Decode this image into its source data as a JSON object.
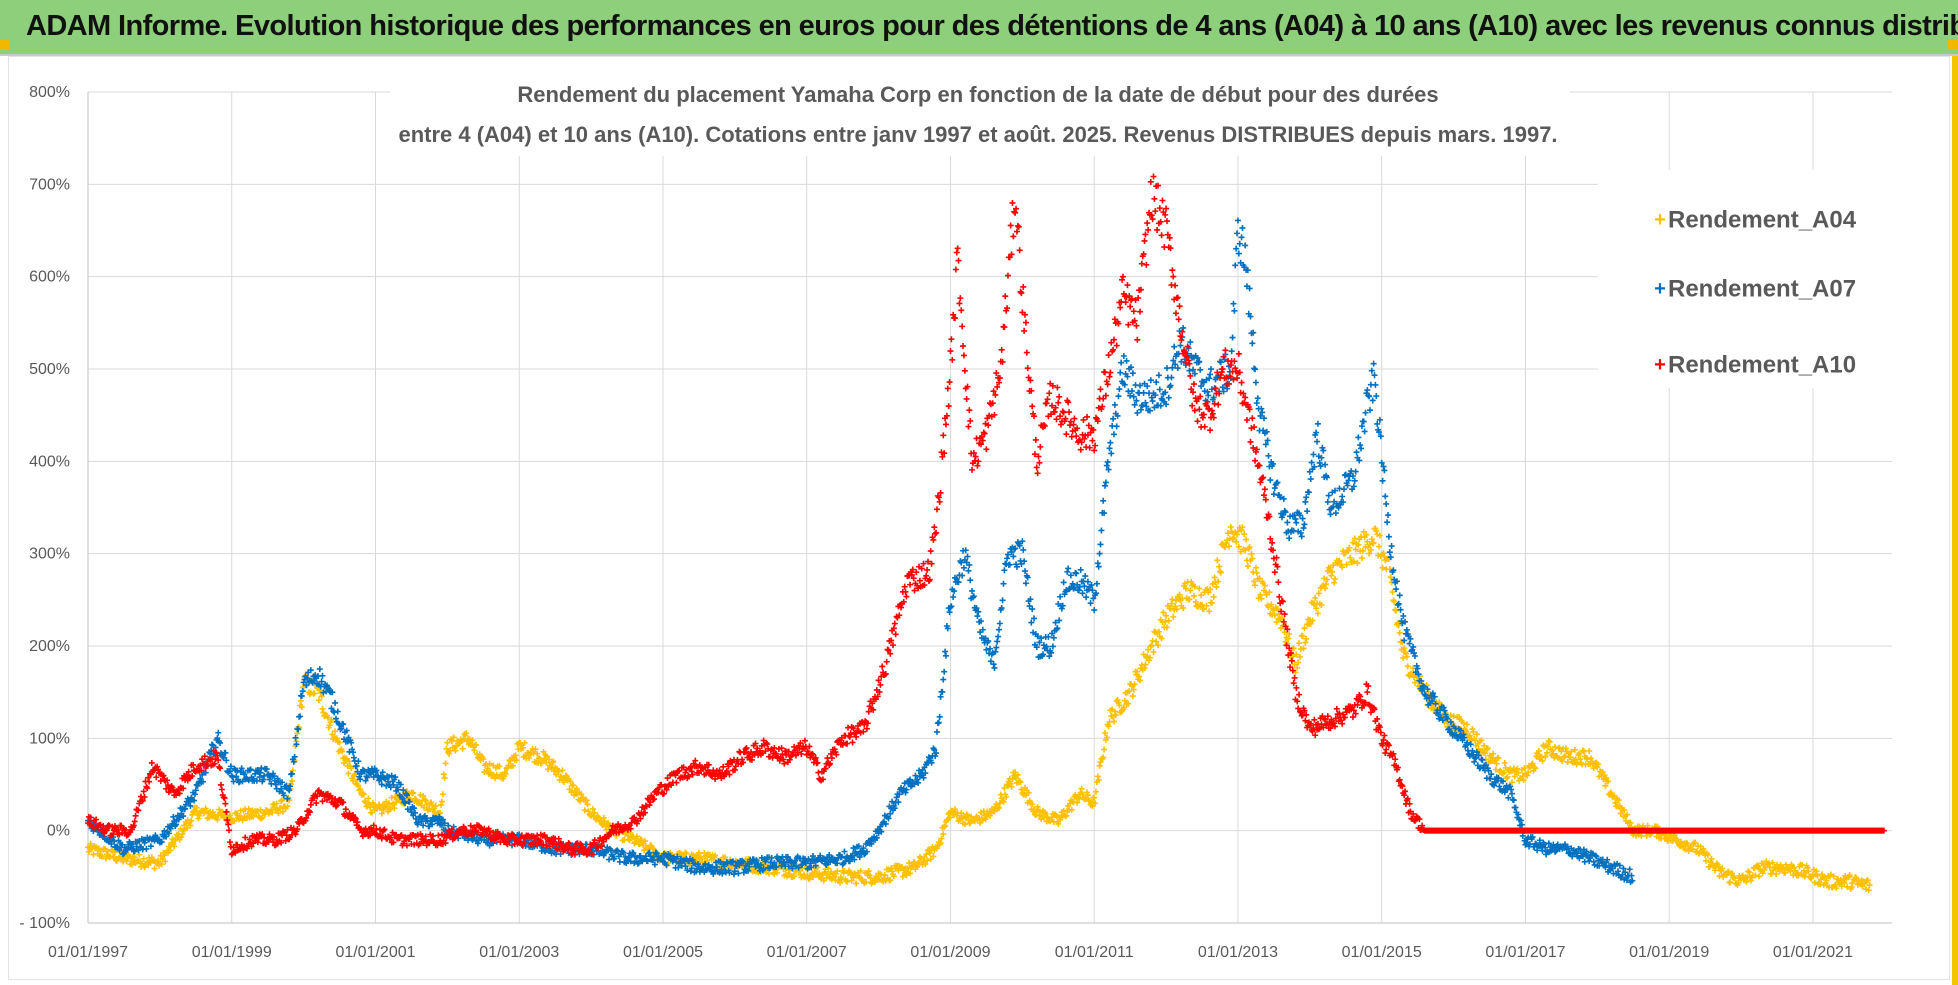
{
  "banner": {
    "text": "ADAM Informe. Evolution historique des performances en euros pour des détentions de 4 ans (A04) à 10 ans (A10) avec les revenus connus distribués"
  },
  "colors": {
    "banner_bg": "#8dcf7a",
    "accent_yellow": "#f2b800",
    "A04": "#ffc000",
    "A07": "#0070c0",
    "A10": "#ff0000",
    "grid": "#d9d9d9",
    "text": "#595959"
  },
  "chart_data": {
    "type": "scatter",
    "title_lines": [
      "Rendement du placement Yamaha Corp en fonction de la date de début pour des durées",
      "entre 4 (A04) et 10 ans (A10). Cotations entre janv 1997 et août. 2025. Revenus DISTRIBUES depuis mars. 1997."
    ],
    "x_tick_labels": [
      "01/01/1997",
      "01/01/1999",
      "01/01/2001",
      "01/01/2003",
      "01/01/2005",
      "01/01/2007",
      "01/01/2009",
      "01/01/2011",
      "01/01/2013",
      "01/01/2015",
      "01/01/2017",
      "01/01/2019",
      "01/01/2021"
    ],
    "y_tick_labels": [
      "- 100%",
      "0%",
      "100%",
      "200%",
      "300%",
      "400%",
      "500%",
      "600%",
      "700%",
      "800%"
    ],
    "ylim": [
      -100,
      800
    ],
    "xlim_years": [
      1997,
      2022.1
    ],
    "marker": "+",
    "grid": true,
    "legend_position": "top-right",
    "series": [
      {
        "name": "Rendement_A04",
        "color": "#ffc000",
        "points": [
          [
            1997.0,
            -20
          ],
          [
            1997.5,
            -30
          ],
          [
            1998.0,
            -35
          ],
          [
            1998.5,
            20
          ],
          [
            1999.0,
            15
          ],
          [
            1999.5,
            20
          ],
          [
            1999.8,
            30
          ],
          [
            2000.0,
            160
          ],
          [
            2000.2,
            150
          ],
          [
            2000.5,
            90
          ],
          [
            2000.8,
            40
          ],
          [
            2001.0,
            20
          ],
          [
            2001.5,
            40
          ],
          [
            2001.9,
            20
          ],
          [
            2002.0,
            90
          ],
          [
            2002.3,
            100
          ],
          [
            2002.5,
            70
          ],
          [
            2002.8,
            60
          ],
          [
            2003.0,
            90
          ],
          [
            2003.3,
            80
          ],
          [
            2003.6,
            60
          ],
          [
            2003.8,
            40
          ],
          [
            2004.0,
            20
          ],
          [
            2004.3,
            0
          ],
          [
            2004.6,
            -10
          ],
          [
            2005.0,
            -30
          ],
          [
            2005.5,
            -30
          ],
          [
            2006.0,
            -35
          ],
          [
            2006.5,
            -40
          ],
          [
            2007.0,
            -45
          ],
          [
            2007.5,
            -50
          ],
          [
            2008.0,
            -50
          ],
          [
            2008.5,
            -40
          ],
          [
            2008.8,
            -20
          ],
          [
            2009.0,
            20
          ],
          [
            2009.3,
            10
          ],
          [
            2009.6,
            20
          ],
          [
            2009.9,
            60
          ],
          [
            2010.2,
            20
          ],
          [
            2010.5,
            10
          ],
          [
            2010.8,
            40
          ],
          [
            2011.0,
            30
          ],
          [
            2011.2,
            120
          ],
          [
            2011.5,
            150
          ],
          [
            2011.8,
            200
          ],
          [
            2012.0,
            230
          ],
          [
            2012.3,
            260
          ],
          [
            2012.6,
            250
          ],
          [
            2012.9,
            330
          ],
          [
            2013.1,
            310
          ],
          [
            2013.3,
            260
          ],
          [
            2013.6,
            230
          ],
          [
            2013.8,
            180
          ],
          [
            2014.0,
            230
          ],
          [
            2014.3,
            280
          ],
          [
            2014.6,
            300
          ],
          [
            2014.9,
            320
          ],
          [
            2015.1,
            280
          ],
          [
            2015.3,
            190
          ],
          [
            2015.6,
            150
          ],
          [
            2015.9,
            120
          ],
          [
            2016.2,
            110
          ],
          [
            2016.5,
            80
          ],
          [
            2016.8,
            60
          ],
          [
            2017.0,
            60
          ],
          [
            2017.3,
            90
          ],
          [
            2017.6,
            80
          ],
          [
            2017.9,
            80
          ],
          [
            2018.2,
            40
          ],
          [
            2018.5,
            0
          ],
          [
            2018.8,
            0
          ],
          [
            2019.1,
            -10
          ],
          [
            2019.4,
            -20
          ],
          [
            2019.7,
            -45
          ],
          [
            2020.0,
            -55
          ],
          [
            2020.3,
            -40
          ],
          [
            2020.6,
            -40
          ],
          [
            2020.9,
            -45
          ],
          [
            2021.2,
            -55
          ],
          [
            2021.5,
            -55
          ],
          [
            2021.8,
            -60
          ]
        ]
      },
      {
        "name": "Rendement_A07",
        "color": "#0070c0",
        "points": [
          [
            1997.0,
            10
          ],
          [
            1997.5,
            -20
          ],
          [
            1998.0,
            -10
          ],
          [
            1998.5,
            40
          ],
          [
            1998.8,
            100
          ],
          [
            1999.0,
            60
          ],
          [
            1999.5,
            60
          ],
          [
            1999.8,
            40
          ],
          [
            2000.0,
            160
          ],
          [
            2000.2,
            170
          ],
          [
            2000.4,
            140
          ],
          [
            2000.6,
            100
          ],
          [
            2000.8,
            60
          ],
          [
            2001.0,
            60
          ],
          [
            2001.3,
            50
          ],
          [
            2001.6,
            10
          ],
          [
            2001.9,
            10
          ],
          [
            2002.0,
            0
          ],
          [
            2002.5,
            -10
          ],
          [
            2003.0,
            -10
          ],
          [
            2003.5,
            -20
          ],
          [
            2004.0,
            -20
          ],
          [
            2004.5,
            -30
          ],
          [
            2005.0,
            -30
          ],
          [
            2005.5,
            -40
          ],
          [
            2006.0,
            -40
          ],
          [
            2006.5,
            -35
          ],
          [
            2007.0,
            -35
          ],
          [
            2007.5,
            -30
          ],
          [
            2007.8,
            -20
          ],
          [
            2008.0,
            0
          ],
          [
            2008.3,
            40
          ],
          [
            2008.6,
            60
          ],
          [
            2008.8,
            90
          ],
          [
            2009.0,
            250
          ],
          [
            2009.2,
            300
          ],
          [
            2009.4,
            220
          ],
          [
            2009.6,
            180
          ],
          [
            2009.8,
            300
          ],
          [
            2010.0,
            300
          ],
          [
            2010.2,
            200
          ],
          [
            2010.4,
            200
          ],
          [
            2010.6,
            270
          ],
          [
            2010.8,
            270
          ],
          [
            2011.0,
            250
          ],
          [
            2011.2,
            400
          ],
          [
            2011.4,
            500
          ],
          [
            2011.6,
            470
          ],
          [
            2011.8,
            470
          ],
          [
            2012.0,
            480
          ],
          [
            2012.2,
            530
          ],
          [
            2012.4,
            500
          ],
          [
            2012.6,
            480
          ],
          [
            2012.9,
            500
          ],
          [
            2013.0,
            650
          ],
          [
            2013.1,
            620
          ],
          [
            2013.3,
            450
          ],
          [
            2013.5,
            380
          ],
          [
            2013.7,
            330
          ],
          [
            2013.9,
            330
          ],
          [
            2014.1,
            430
          ],
          [
            2014.3,
            350
          ],
          [
            2014.6,
            380
          ],
          [
            2014.8,
            460
          ],
          [
            2014.9,
            490
          ],
          [
            2015.1,
            320
          ],
          [
            2015.3,
            220
          ],
          [
            2015.6,
            150
          ],
          [
            2015.9,
            120
          ],
          [
            2016.2,
            90
          ],
          [
            2016.5,
            60
          ],
          [
            2016.8,
            40
          ],
          [
            2017.0,
            -10
          ],
          [
            2017.3,
            -20
          ],
          [
            2017.6,
            -20
          ],
          [
            2017.9,
            -30
          ],
          [
            2018.2,
            -40
          ],
          [
            2018.5,
            -50
          ]
        ]
      },
      {
        "name": "Rendement_A10",
        "color": "#ff0000",
        "points": [
          [
            1997.0,
            10
          ],
          [
            1997.3,
            0
          ],
          [
            1997.6,
            0
          ],
          [
            1997.9,
            70
          ],
          [
            1998.2,
            40
          ],
          [
            1998.5,
            70
          ],
          [
            1998.8,
            80
          ],
          [
            1999.0,
            -20
          ],
          [
            1999.3,
            -10
          ],
          [
            1999.6,
            -10
          ],
          [
            1999.9,
            0
          ],
          [
            2000.2,
            40
          ],
          [
            2000.5,
            30
          ],
          [
            2000.8,
            0
          ],
          [
            2001.0,
            0
          ],
          [
            2001.3,
            -10
          ],
          [
            2001.6,
            -10
          ],
          [
            2001.9,
            -10
          ],
          [
            2002.2,
            0
          ],
          [
            2002.5,
            0
          ],
          [
            2002.8,
            -10
          ],
          [
            2003.1,
            -10
          ],
          [
            2003.4,
            -10
          ],
          [
            2003.7,
            -20
          ],
          [
            2004.0,
            -20
          ],
          [
            2004.3,
            0
          ],
          [
            2004.6,
            10
          ],
          [
            2004.9,
            40
          ],
          [
            2005.2,
            60
          ],
          [
            2005.5,
            70
          ],
          [
            2005.8,
            60
          ],
          [
            2006.1,
            80
          ],
          [
            2006.4,
            90
          ],
          [
            2006.7,
            80
          ],
          [
            2007.0,
            90
          ],
          [
            2007.2,
            60
          ],
          [
            2007.5,
            100
          ],
          [
            2007.8,
            110
          ],
          [
            2008.1,
            180
          ],
          [
            2008.4,
            270
          ],
          [
            2008.7,
            280
          ],
          [
            2008.8,
            330
          ],
          [
            2009.0,
            500
          ],
          [
            2009.1,
            620
          ],
          [
            2009.3,
            400
          ],
          [
            2009.5,
            430
          ],
          [
            2009.7,
            500
          ],
          [
            2009.9,
            690
          ],
          [
            2010.0,
            580
          ],
          [
            2010.2,
            400
          ],
          [
            2010.4,
            470
          ],
          [
            2010.6,
            450
          ],
          [
            2010.8,
            430
          ],
          [
            2011.0,
            430
          ],
          [
            2011.2,
            500
          ],
          [
            2011.4,
            580
          ],
          [
            2011.6,
            550
          ],
          [
            2011.8,
            690
          ],
          [
            2012.0,
            650
          ],
          [
            2012.2,
            550
          ],
          [
            2012.4,
            460
          ],
          [
            2012.6,
            450
          ],
          [
            2012.8,
            500
          ],
          [
            2013.0,
            500
          ],
          [
            2013.2,
            430
          ],
          [
            2013.4,
            350
          ],
          [
            2013.6,
            250
          ],
          [
            2013.8,
            150
          ],
          [
            2014.0,
            110
          ],
          [
            2014.3,
            120
          ],
          [
            2014.6,
            130
          ],
          [
            2014.8,
            150
          ],
          [
            2015.0,
            100
          ],
          [
            2015.2,
            70
          ],
          [
            2015.4,
            20
          ],
          [
            2015.6,
            0
          ],
          [
            2016.0,
            0
          ],
          [
            2017.0,
            0
          ],
          [
            2018.0,
            0
          ],
          [
            2019.0,
            0
          ],
          [
            2020.0,
            0
          ],
          [
            2021.0,
            0
          ],
          [
            2022.0,
            0
          ]
        ]
      }
    ]
  }
}
